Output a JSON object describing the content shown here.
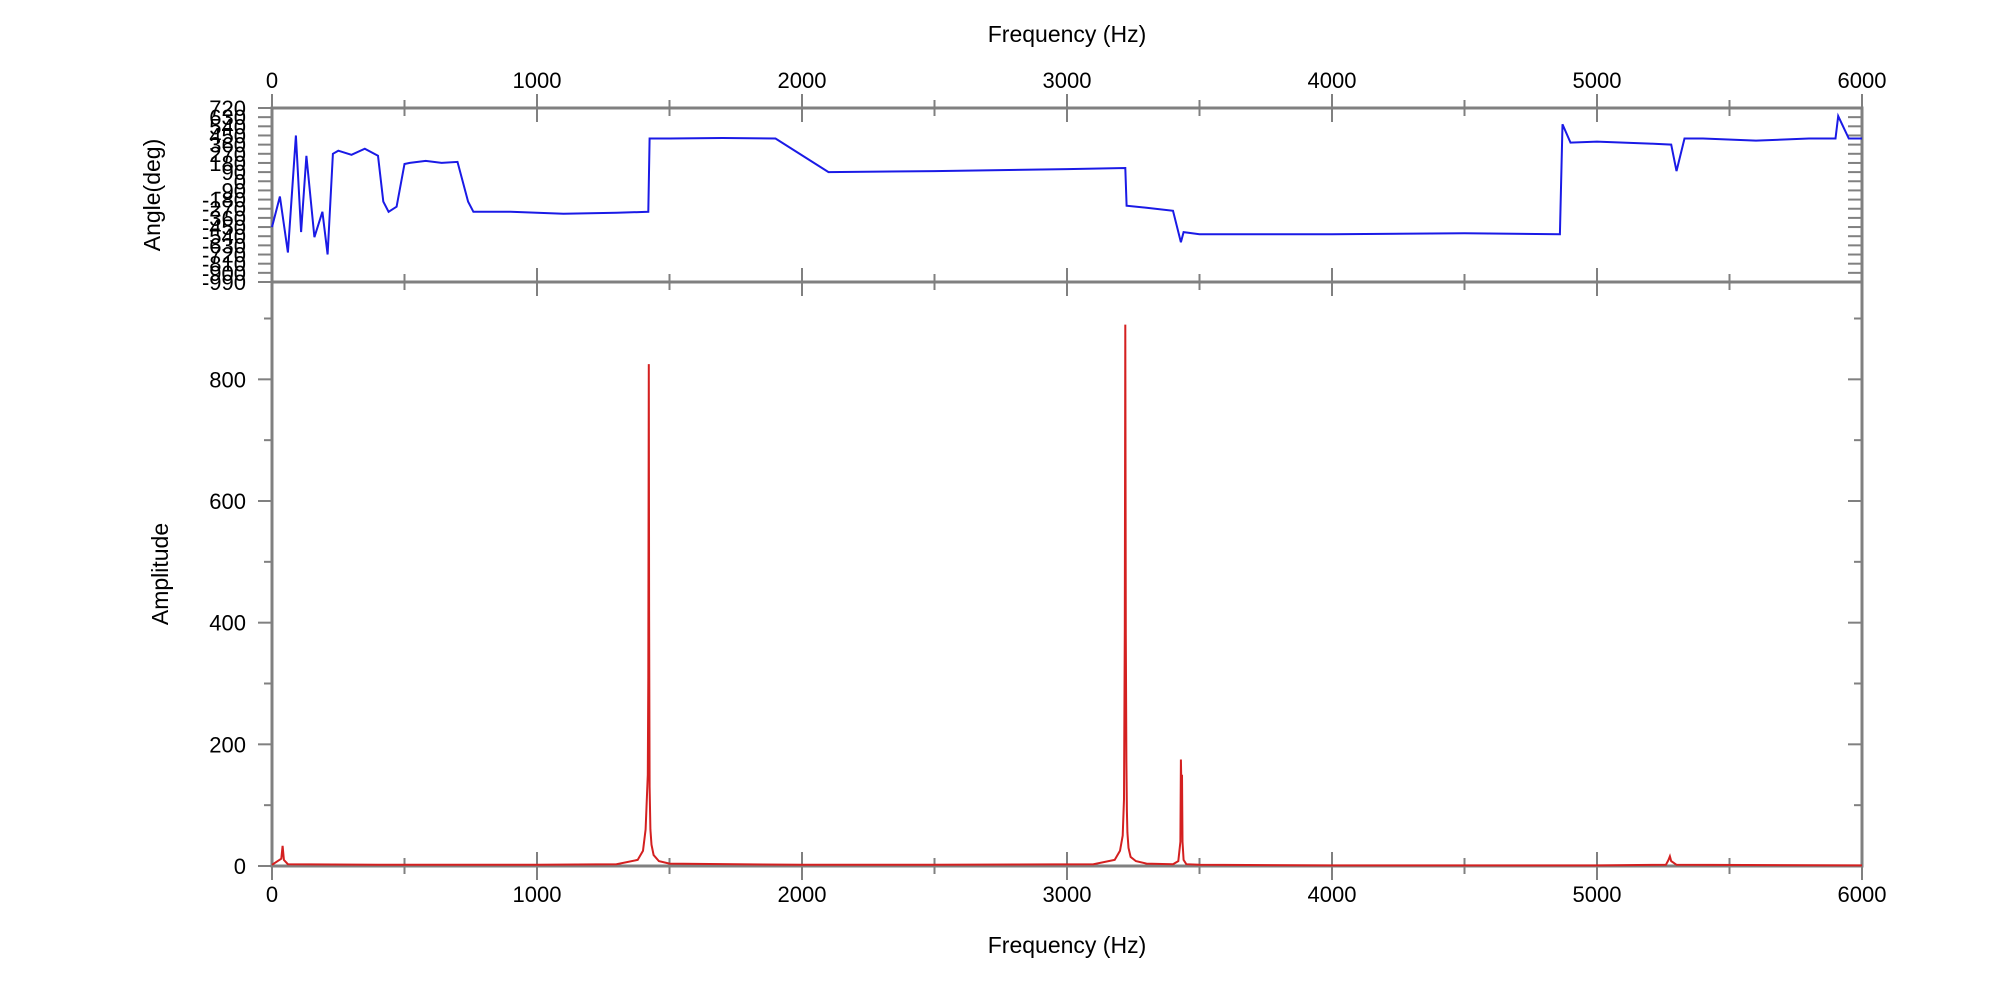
{
  "chart_data": [
    {
      "panel": "phase",
      "type": "line",
      "xlabel": "Frequency (Hz)",
      "ylabel": "Angle(deg)",
      "xlim": [
        0,
        6000
      ],
      "ylim": [
        -990,
        720
      ],
      "x_ticks": [
        0,
        1000,
        2000,
        3000,
        4000,
        5000,
        6000
      ],
      "x_tick_labels": [
        "0",
        "1000",
        "2000",
        "3000",
        "4000",
        "5000",
        "6000"
      ],
      "y_ticks": [
        720,
        630,
        540,
        450,
        360,
        270,
        180,
        90,
        0,
        -90,
        -180,
        -270,
        -360,
        -450,
        -540,
        -630,
        -720,
        -810,
        -900,
        -990
      ],
      "y_tick_labels": [
        "720",
        "630",
        "540",
        "450",
        "360",
        "270",
        "180",
        "90",
        "0",
        "-90",
        "-180",
        "-270",
        "-360",
        "-450",
        "-540",
        "-630",
        "-720",
        "-810",
        "-900",
        "-990"
      ],
      "grid": false,
      "color": "#1a1ae6",
      "series": [
        {
          "x": [
            0,
            30,
            60,
            90,
            110,
            130,
            160,
            190,
            210,
            230,
            250,
            300,
            350,
            400,
            420,
            440,
            470,
            500,
            520,
            580,
            640,
            700,
            740,
            760,
            900,
            1100,
            1300,
            1420,
            1425,
            1500,
            1700,
            1900,
            2100,
            2500,
            3000,
            3220,
            3225,
            3300,
            3400,
            3430,
            3440,
            3500,
            4000,
            4500,
            4860,
            4870,
            4900,
            5000,
            5200,
            5280,
            5300,
            5330,
            5400,
            5600,
            5800,
            5900,
            5910,
            5950,
            6000
          ],
          "y": [
            -450,
            -150,
            -700,
            450,
            -500,
            250,
            -550,
            -300,
            -720,
            270,
            300,
            260,
            320,
            250,
            -200,
            -300,
            -250,
            170,
            180,
            200,
            180,
            190,
            -200,
            -300,
            -300,
            -320,
            -310,
            -300,
            420,
            420,
            425,
            420,
            90,
            100,
            120,
            130,
            -240,
            -260,
            -290,
            -600,
            -500,
            -520,
            -520,
            -510,
            -520,
            560,
            380,
            390,
            370,
            360,
            100,
            420,
            420,
            400,
            420,
            420,
            640,
            420,
            420
          ]
        }
      ]
    },
    {
      "panel": "amplitude",
      "type": "line",
      "xlabel": "Frequency (Hz)",
      "ylabel": "Amplitude",
      "xlim": [
        0,
        6000
      ],
      "ylim": [
        0,
        960
      ],
      "x_ticks": [
        0,
        1000,
        2000,
        3000,
        4000,
        5000,
        6000
      ],
      "x_tick_labels": [
        "0",
        "1000",
        "2000",
        "3000",
        "4000",
        "5000",
        "6000"
      ],
      "y_ticks": [
        0,
        200,
        400,
        600,
        800
      ],
      "y_tick_labels": [
        "0",
        "200",
        "400",
        "600",
        "800"
      ],
      "grid": false,
      "color": "#d42020",
      "series": [
        {
          "x": [
            0,
            35,
            40,
            45,
            60,
            400,
            1000,
            1300,
            1380,
            1400,
            1410,
            1418,
            1420,
            1422,
            1423,
            1425,
            1428,
            1432,
            1440,
            1460,
            1500,
            2000,
            2500,
            3100,
            3180,
            3200,
            3210,
            3215,
            3218,
            3220,
            3222,
            3224,
            3226,
            3228,
            3232,
            3240,
            3260,
            3300,
            3400,
            3420,
            3428,
            3430,
            3432,
            3434,
            3436,
            3440,
            3450,
            3500,
            4000,
            5000,
            5260,
            5270,
            5275,
            5280,
            5300,
            6000
          ],
          "y": [
            2,
            12,
            33,
            10,
            3,
            2,
            2,
            3,
            10,
            25,
            60,
            150,
            310,
            825,
            420,
            130,
            60,
            35,
            18,
            8,
            4,
            2,
            2,
            3,
            10,
            25,
            50,
            110,
            390,
            890,
            380,
            170,
            90,
            55,
            30,
            15,
            8,
            4,
            3,
            8,
            40,
            175,
            120,
            150,
            40,
            10,
            3,
            2,
            1,
            1,
            2,
            10,
            16,
            8,
            2,
            1
          ]
        }
      ]
    }
  ]
}
